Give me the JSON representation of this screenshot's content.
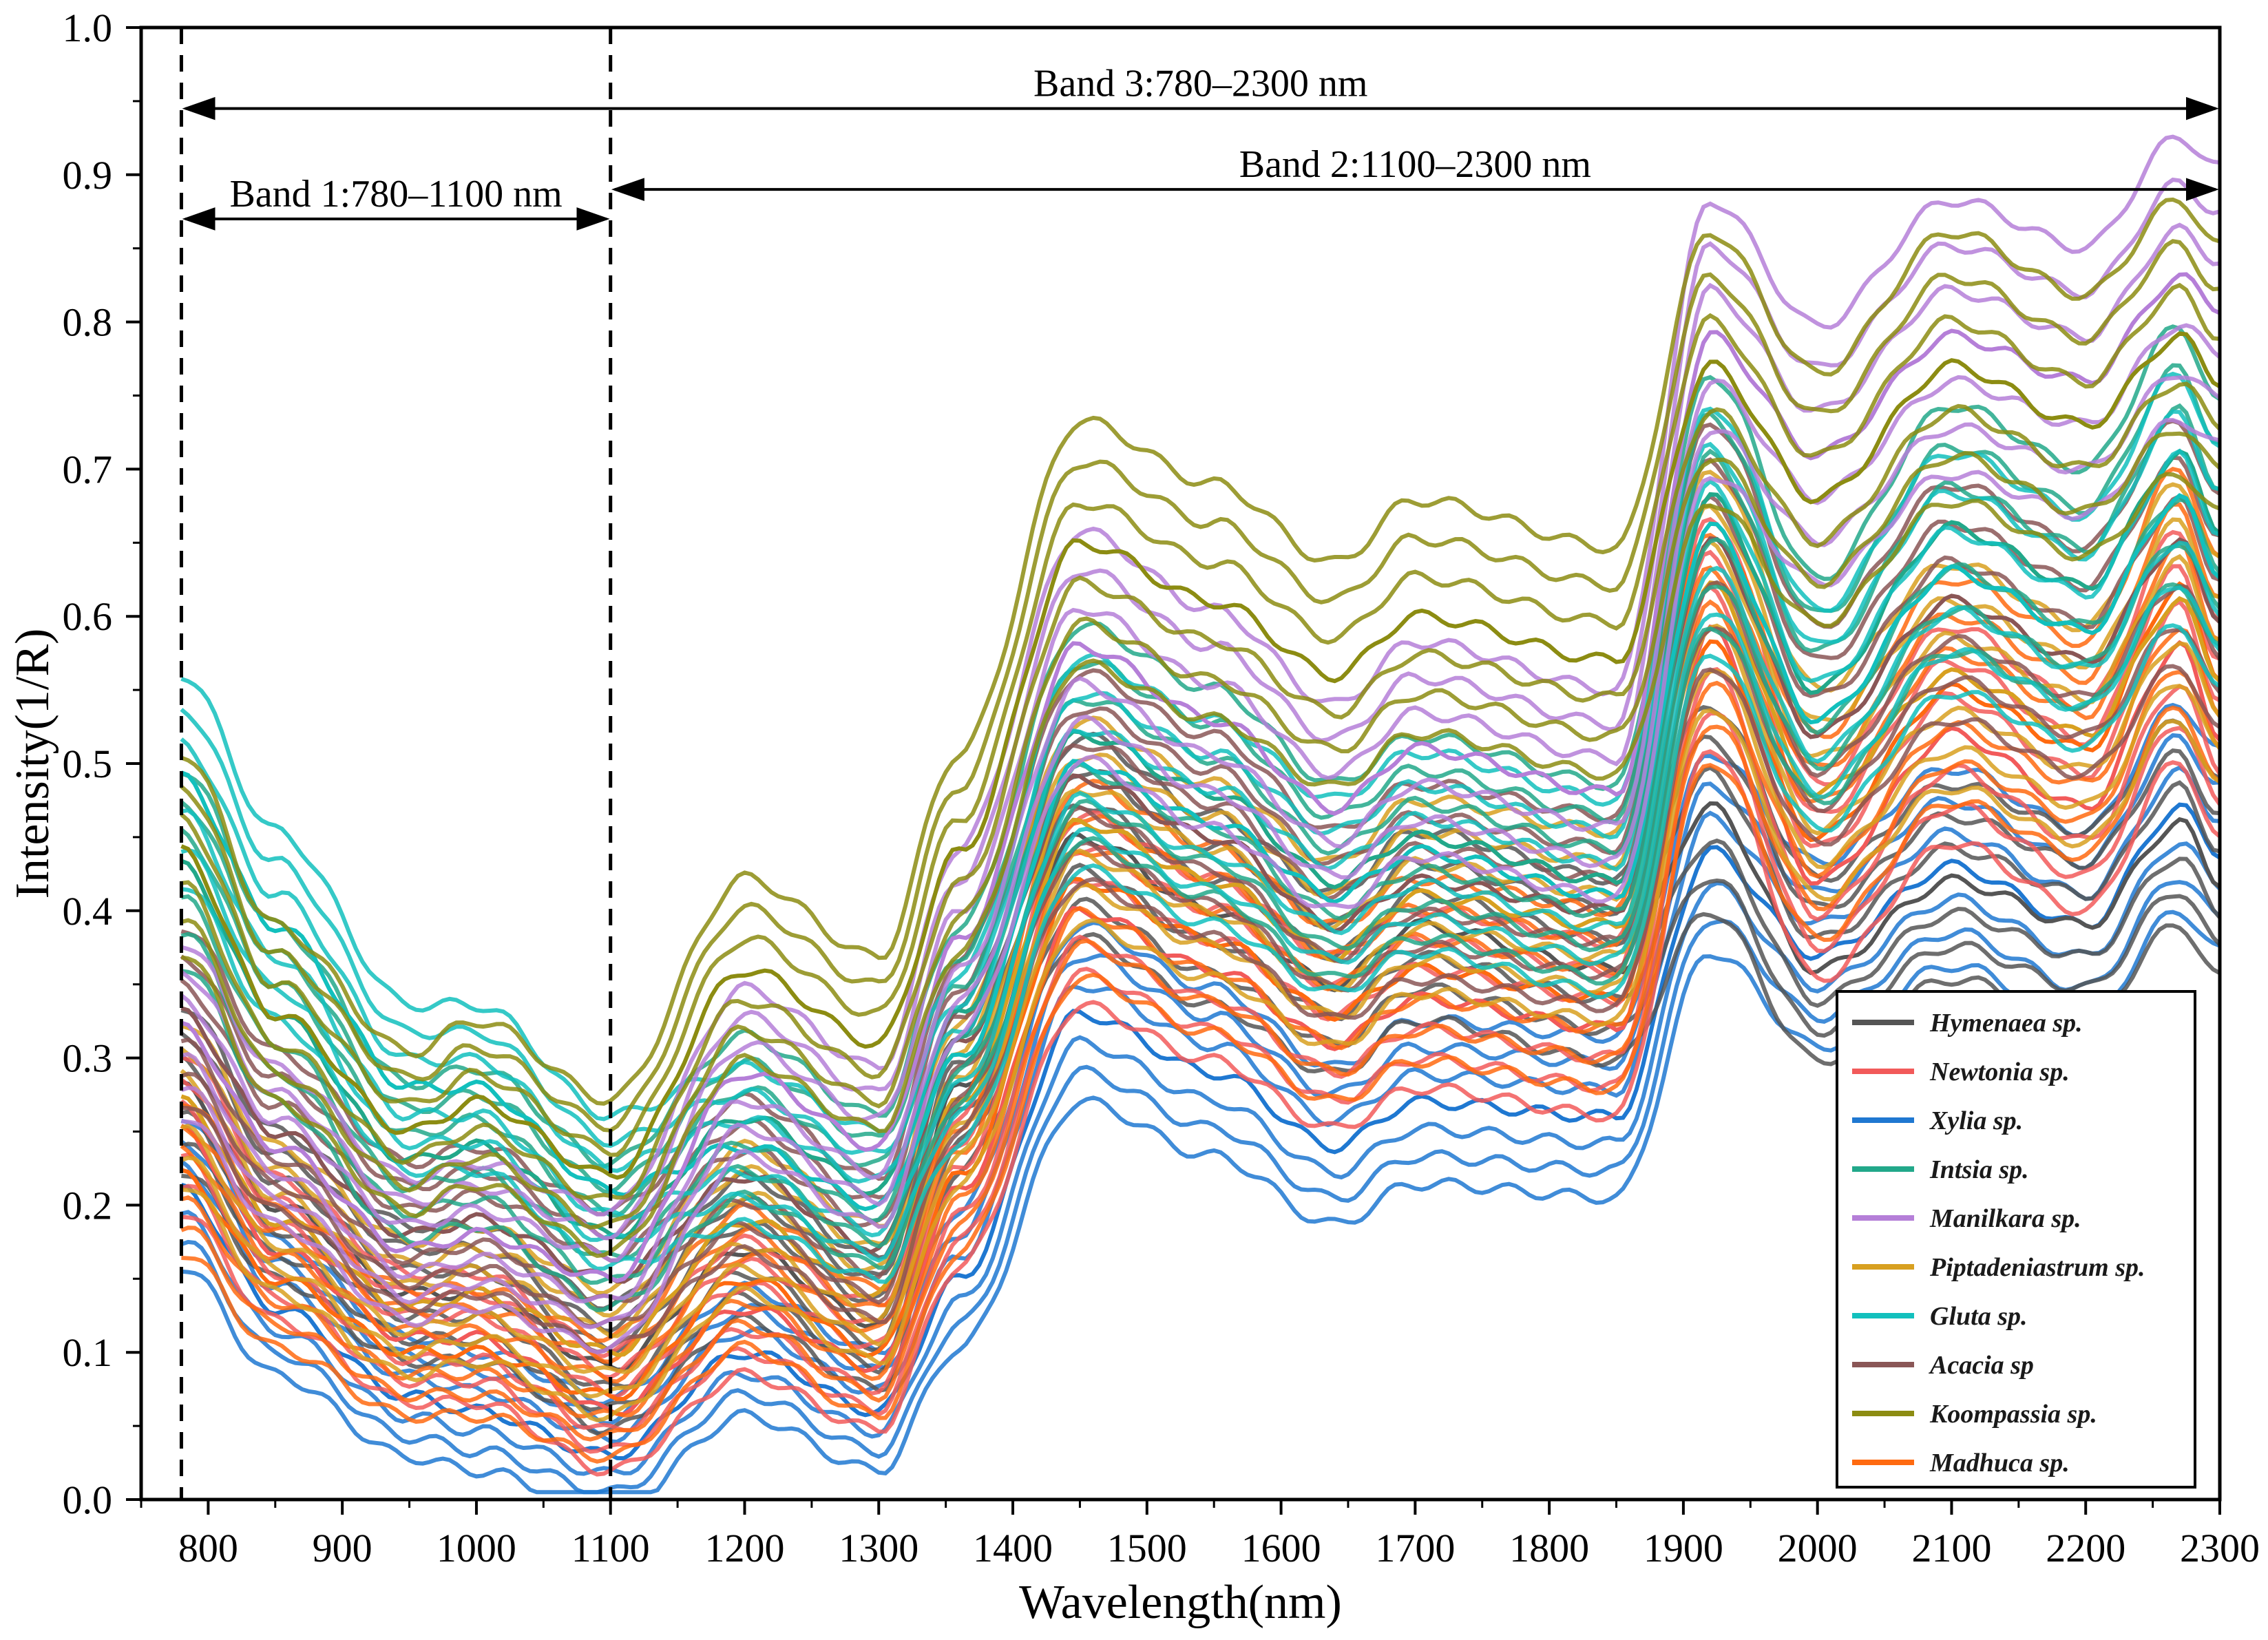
{
  "chart_data": {
    "type": "line",
    "xlabel": "Wavelength(nm)",
    "ylabel": "Intensity(1/R)",
    "xlim": [
      750,
      2300
    ],
    "ylim": [
      0.0,
      1.0
    ],
    "x_ticks": [
      "800",
      "900",
      "1000",
      "1100",
      "1200",
      "1300",
      "1400",
      "1500",
      "1600",
      "1700",
      "1800",
      "1900",
      "2000",
      "2100",
      "2200",
      "2300"
    ],
    "y_ticks": [
      "0.0",
      "0.1",
      "0.2",
      "0.3",
      "0.4",
      "0.5",
      "0.6",
      "0.7",
      "0.8",
      "0.9",
      "1.0"
    ],
    "grid": false,
    "legend_position": "bottom-right",
    "bands": [
      {
        "label": "Band 1:780–1100 nm",
        "start": 780,
        "end": 1100,
        "y": 0.87
      },
      {
        "label": "Band 2:1100–2300 nm",
        "start": 1100,
        "end": 2300,
        "y": 0.89
      },
      {
        "label": "Band 3:780–2300 nm",
        "start": 780,
        "end": 2300,
        "y": 0.945
      }
    ],
    "band_boundaries": [
      780,
      1100,
      2300
    ],
    "x": [
      780,
      850,
      950,
      1000,
      1100,
      1200,
      1300,
      1360,
      1450,
      1550,
      1640,
      1700,
      1850,
      1920,
      2000,
      2100,
      2200,
      2270,
      2300
    ],
    "series": [
      {
        "name": "Hymenaea sp.",
        "color": "#555555",
        "values": [
          0.28,
          0.2,
          0.14,
          0.14,
          0.09,
          0.17,
          0.12,
          0.28,
          0.45,
          0.4,
          0.35,
          0.39,
          0.36,
          0.47,
          0.36,
          0.42,
          0.39,
          0.46,
          0.42
        ]
      },
      {
        "name": "Newtonia sp.",
        "color": "#f25a5a",
        "values": [
          0.25,
          0.17,
          0.11,
          0.11,
          0.06,
          0.13,
          0.09,
          0.21,
          0.4,
          0.36,
          0.31,
          0.34,
          0.32,
          0.59,
          0.42,
          0.52,
          0.47,
          0.58,
          0.52
        ]
      },
      {
        "name": "Xylia sp.",
        "color": "#1f78d1",
        "values": [
          0.21,
          0.13,
          0.07,
          0.06,
          0.03,
          0.1,
          0.06,
          0.15,
          0.33,
          0.29,
          0.24,
          0.27,
          0.26,
          0.44,
          0.37,
          0.43,
          0.39,
          0.47,
          0.44
        ]
      },
      {
        "name": "Intsia sp.",
        "color": "#22a88a",
        "values": [
          0.43,
          0.33,
          0.23,
          0.24,
          0.18,
          0.26,
          0.21,
          0.33,
          0.52,
          0.48,
          0.42,
          0.45,
          0.42,
          0.68,
          0.55,
          0.66,
          0.62,
          0.71,
          0.66
        ]
      },
      {
        "name": "Manilkara sp.",
        "color": "#b57fd8",
        "values": [
          0.32,
          0.24,
          0.17,
          0.18,
          0.15,
          0.29,
          0.24,
          0.38,
          0.58,
          0.53,
          0.47,
          0.51,
          0.48,
          0.79,
          0.71,
          0.79,
          0.76,
          0.83,
          0.81
        ]
      },
      {
        "name": "Piptadeniastrum sp.",
        "color": "#d8a020",
        "values": [
          0.27,
          0.19,
          0.13,
          0.14,
          0.1,
          0.19,
          0.14,
          0.27,
          0.46,
          0.42,
          0.37,
          0.41,
          0.39,
          0.62,
          0.48,
          0.56,
          0.52,
          0.61,
          0.56
        ]
      },
      {
        "name": "Gluta sp.",
        "color": "#12c0bd",
        "values": [
          0.49,
          0.39,
          0.28,
          0.28,
          0.21,
          0.24,
          0.2,
          0.3,
          0.5,
          0.46,
          0.41,
          0.44,
          0.41,
          0.66,
          0.53,
          0.63,
          0.59,
          0.68,
          0.63
        ]
      },
      {
        "name": "Acacia sp",
        "color": "#8a5656",
        "values": [
          0.33,
          0.25,
          0.18,
          0.19,
          0.15,
          0.22,
          0.17,
          0.31,
          0.49,
          0.45,
          0.39,
          0.42,
          0.4,
          0.65,
          0.52,
          0.61,
          0.57,
          0.65,
          0.6
        ]
      },
      {
        "name": "Koompassia sp.",
        "color": "#8c8c12",
        "values": [
          0.44,
          0.33,
          0.25,
          0.27,
          0.22,
          0.36,
          0.31,
          0.44,
          0.65,
          0.61,
          0.56,
          0.6,
          0.57,
          0.77,
          0.68,
          0.77,
          0.73,
          0.79,
          0.76
        ]
      },
      {
        "name": "Madhuca sp.",
        "color": "#ff6a10",
        "values": [
          0.22,
          0.15,
          0.1,
          0.1,
          0.07,
          0.15,
          0.1,
          0.22,
          0.42,
          0.38,
          0.33,
          0.36,
          0.34,
          0.58,
          0.45,
          0.55,
          0.51,
          0.62,
          0.56
        ]
      }
    ]
  }
}
